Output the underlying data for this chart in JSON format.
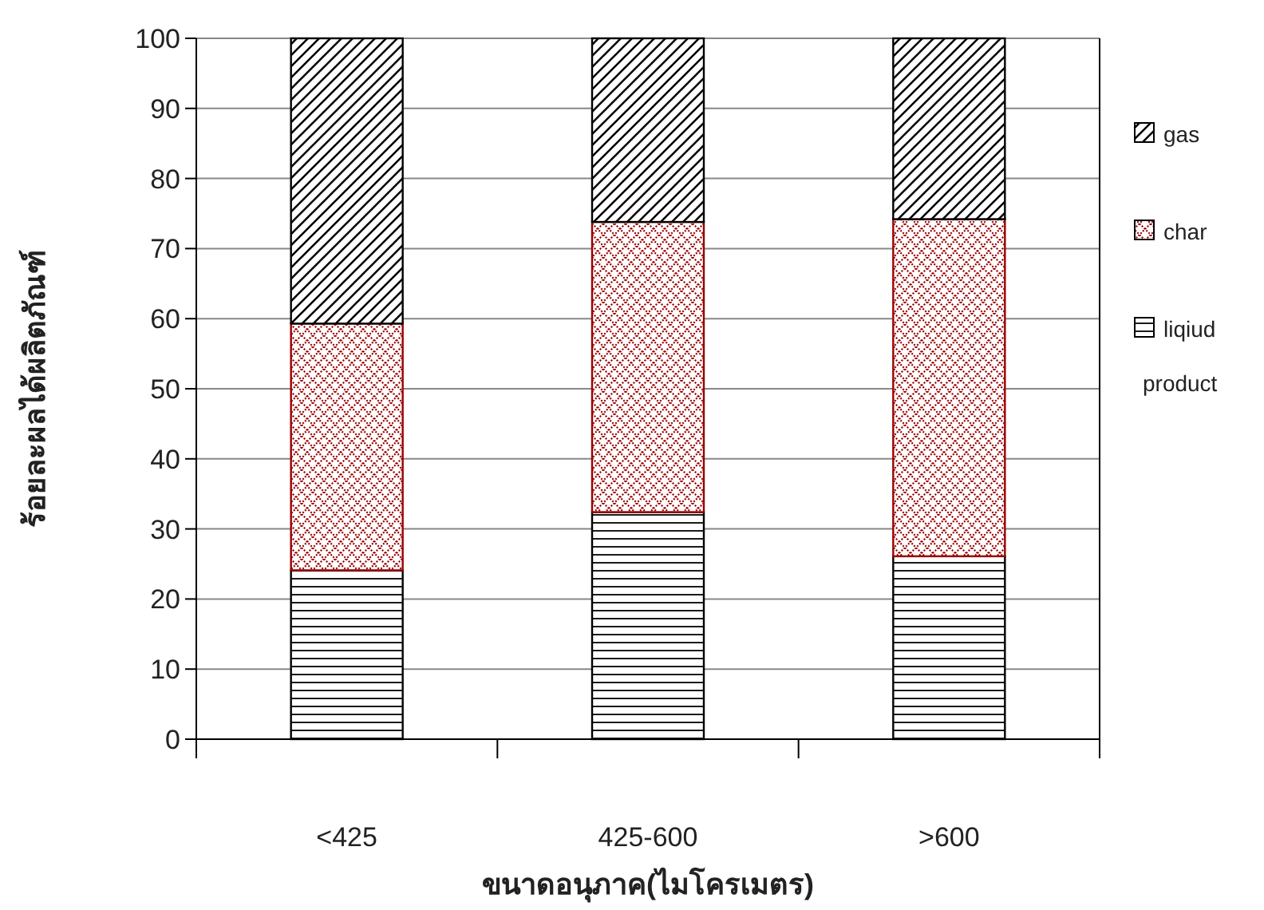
{
  "chart_data": {
    "type": "bar",
    "stacked": true,
    "categories": [
      "<425",
      "425-600",
      ">600"
    ],
    "series": [
      {
        "name": "liqiud product",
        "color": "#000000",
        "values": [
          24.1,
          32.4,
          26.1
        ]
      },
      {
        "name": "char",
        "color": "#990000",
        "values": [
          35.2,
          41.4,
          48.1
        ]
      },
      {
        "name": "gas",
        "color": "#000000",
        "values": [
          40.7,
          26.2,
          25.8
        ]
      }
    ],
    "xlabel": "ขนาดอนุภาค(ไมโครเมตร)",
    "ylabel": "ร้อยละผลได้ผลิตภัณฑ์",
    "ylim": [
      0,
      100
    ],
    "yticks": [
      0,
      10,
      20,
      30,
      40,
      50,
      60,
      70,
      80,
      90,
      100
    ],
    "grid": "y",
    "legend": "right"
  }
}
